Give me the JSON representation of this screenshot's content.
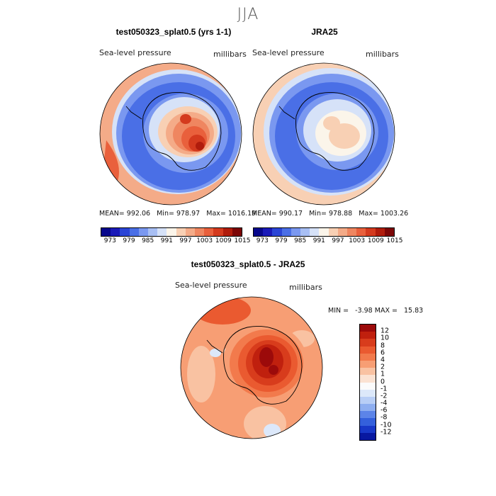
{
  "season": "JJA",
  "panels": [
    {
      "title": "test050323_splat0.5 (yrs 1-1)",
      "variable": "Sea-level pressure",
      "units": "millibars",
      "stats": {
        "mean_label": "MEAN=",
        "mean": "992.06",
        "min_label": "Min=",
        "min": "978.97",
        "max_label": "Max=",
        "max": "1016.19"
      }
    },
    {
      "title": "JRA25",
      "variable": "Sea-level pressure",
      "units": "millibars",
      "stats": {
        "mean_label": "MEAN=",
        "mean": "990.17",
        "min_label": "Min=",
        "min": "978.88",
        "max_label": "Max=",
        "max": "1003.26"
      }
    }
  ],
  "diff_panel": {
    "title": "test050323_splat0.5 - JRA25",
    "variable": "Sea-level pressure",
    "units": "millibars",
    "minmax": "MIN =   -3.98 MAX =   15.83"
  },
  "chart_data": [
    {
      "type": "heatmap",
      "projection": "south-polar-stereographic",
      "title": "test050323_splat0.5 (yrs 1-1)",
      "variable": "Sea-level pressure",
      "units": "millibars",
      "mean": 992.06,
      "min": 978.97,
      "max": 1016.19,
      "colorbar_ticks": [
        "973",
        "979",
        "985",
        "991",
        "997",
        "1003",
        "1009",
        "1015"
      ],
      "colorbar_colors": [
        "#08088c",
        "#1a1ab8",
        "#2b45d6",
        "#4a6fe6",
        "#7a98f0",
        "#a8bff4",
        "#d6e2f8",
        "#fbf5ea",
        "#f8d0b4",
        "#f4ab88",
        "#ef8660",
        "#e9603c",
        "#d43a1e",
        "#b01c0c",
        "#7c0606"
      ],
      "features": [
        "strong high pressure over East Antarctic plateau",
        "low pressure belt around 60S",
        "higher pressure ring at mid-latitudes"
      ]
    },
    {
      "type": "heatmap",
      "projection": "south-polar-stereographic",
      "title": "JRA25",
      "variable": "Sea-level pressure",
      "units": "millibars",
      "mean": 990.17,
      "min": 978.88,
      "max": 1003.26,
      "colorbar_ticks": [
        "973",
        "979",
        "985",
        "991",
        "997",
        "1003",
        "1009",
        "1015"
      ],
      "colorbar_colors": [
        "#08088c",
        "#1a1ab8",
        "#2b45d6",
        "#4a6fe6",
        "#7a98f0",
        "#a8bff4",
        "#d6e2f8",
        "#fbf5ea",
        "#f8d0b4",
        "#f4ab88",
        "#ef8660",
        "#e9603c",
        "#d43a1e",
        "#b01c0c",
        "#7c0606"
      ],
      "features": [
        "weak high pressure over Antarctica",
        "low pressure belt around 60S",
        "higher pressure ring at mid-latitudes"
      ]
    },
    {
      "type": "heatmap",
      "projection": "south-polar-stereographic",
      "title": "test050323_splat0.5 - JRA25",
      "variable": "Sea-level pressure",
      "units": "millibars",
      "min": -3.98,
      "max": 15.83,
      "colorbar_ticks": [
        "12",
        "10",
        "8",
        "6",
        "4",
        "2",
        "1",
        "0",
        "-1",
        "-2",
        "-4",
        "-6",
        "-8",
        "-10",
        "-12"
      ],
      "colorbar_colors": [
        "#9c0a0a",
        "#c0200e",
        "#d83c1c",
        "#ea5a30",
        "#f27a4c",
        "#f79e74",
        "#f9c2a2",
        "#fbe2d2",
        "#fbfbfb",
        "#dce8fa",
        "#b8cef6",
        "#8eaef0",
        "#5c84e8",
        "#3460dc",
        "#1838c8",
        "#0818a0"
      ],
      "features": [
        "large positive difference over Antarctica",
        "slight positive difference over most of Southern Ocean"
      ]
    }
  ]
}
